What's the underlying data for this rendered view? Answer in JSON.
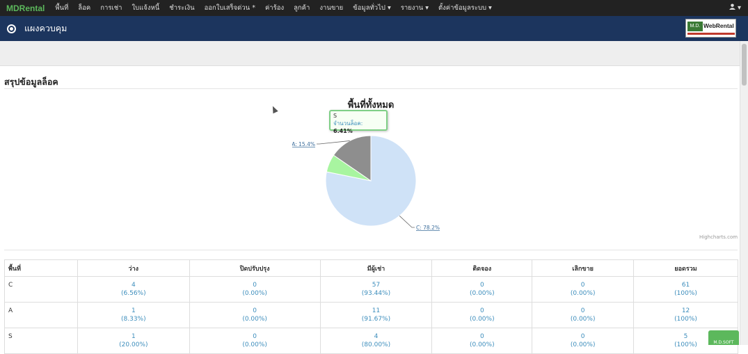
{
  "navbar": {
    "brand": "MDRental",
    "items": [
      "พื้นที่",
      "ล็อค",
      "การเช่า",
      "ใบแจ้งหนี้",
      "ชำระเงิน",
      "ออกใบเสร็จด่วน *",
      "ค่าร้อง",
      "ลูกค้า",
      "งานขาย",
      "ข้อมูลทั่วไป ▾",
      "รายงาน ▾",
      "ตั้งค่าข้อมูลระบบ ▾"
    ],
    "user_menu": "▾"
  },
  "header": {
    "title": "แผงควบคุม",
    "logo_md": "M.D.",
    "logo_text": "WebRental"
  },
  "section": {
    "title": "สรุปข้อมูลล็อค"
  },
  "chart_data": {
    "type": "pie",
    "title": "พื้นที่ทั้งหมด",
    "slices": [
      {
        "label": "C: 78.2%",
        "value": 78.2,
        "color": "#cfe2f7"
      },
      {
        "label": "S",
        "value": 6.41,
        "color": "#a8f5a0"
      },
      {
        "label": "A: 15.4%",
        "value": 15.4,
        "color": "#8e8e8e"
      }
    ],
    "credit": "Highcharts.com",
    "tooltip": {
      "series": "S",
      "label": "จำนวนล็อค:",
      "value": "6.41%"
    }
  },
  "table": {
    "headers": [
      "พื้นที่",
      "ว่าง",
      "ปิดปรับปรุง",
      "มีผู้เช่า",
      "ติดจอง",
      "เลิกขาย",
      "ยอดรวม"
    ],
    "rows": [
      {
        "area": "C",
        "cells": [
          [
            "4",
            "(6.56%)"
          ],
          [
            "0",
            "(0.00%)"
          ],
          [
            "57",
            "(93.44%)"
          ],
          [
            "0",
            "(0.00%)"
          ],
          [
            "0",
            "(0.00%)"
          ],
          [
            "61",
            "(100%)"
          ]
        ]
      },
      {
        "area": "A",
        "cells": [
          [
            "1",
            "(8.33%)"
          ],
          [
            "0",
            "(0.00%)"
          ],
          [
            "11",
            "(91.67%)"
          ],
          [
            "0",
            "(0.00%)"
          ],
          [
            "0",
            "(0.00%)"
          ],
          [
            "12",
            "(100%)"
          ]
        ]
      },
      {
        "area": "S",
        "cells": [
          [
            "1",
            "(20.00%)"
          ],
          [
            "0",
            "(0.00%)"
          ],
          [
            "4",
            "(80.00%)"
          ],
          [
            "0",
            "(0.00%)"
          ],
          [
            "0",
            "(0.00%)"
          ],
          [
            "5",
            "(100%)"
          ]
        ]
      }
    ]
  },
  "badge": "M.D.SOFT"
}
